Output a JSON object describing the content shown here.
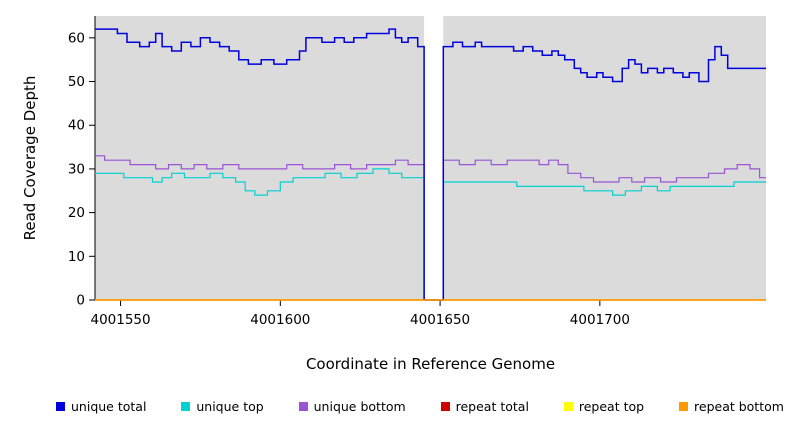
{
  "legend": [
    {
      "label": "unique total",
      "color": "#0000DD"
    },
    {
      "label": "unique top",
      "color": "#00D1D1"
    },
    {
      "label": "unique bottom",
      "color": "#9955D5"
    },
    {
      "label": "repeat total",
      "color": "#CC0000"
    },
    {
      "label": "repeat top",
      "color": "#FFFF00"
    },
    {
      "label": "repeat bottom",
      "color": "#FF9900"
    }
  ],
  "chart_data": {
    "type": "line",
    "step": true,
    "title": "",
    "xlabel": "Coordinate in Reference Genome",
    "ylabel": "Read Coverage Depth",
    "xlim": [
      4001542,
      4001752
    ],
    "ylim": [
      0,
      65
    ],
    "x_ticks": [
      4001550,
      4001600,
      4001650,
      4001700
    ],
    "y_ticks": [
      0,
      10,
      20,
      30,
      40,
      50,
      60
    ],
    "panel_color": "#DBDBDB",
    "gap_region": [
      4001645,
      4001651
    ],
    "grid": false,
    "legend_position": "bottom",
    "series": [
      {
        "name": "unique bottom",
        "color": "#9955D5",
        "width": 1.2,
        "points": [
          [
            4001542,
            33
          ],
          [
            4001545,
            32
          ],
          [
            4001549,
            32
          ],
          [
            4001553,
            31
          ],
          [
            4001557,
            31
          ],
          [
            4001561,
            30
          ],
          [
            4001565,
            31
          ],
          [
            4001569,
            30
          ],
          [
            4001573,
            31
          ],
          [
            4001577,
            30
          ],
          [
            4001582,
            31
          ],
          [
            4001587,
            30
          ],
          [
            4001592,
            30
          ],
          [
            4001597,
            30
          ],
          [
            4001602,
            31
          ],
          [
            4001607,
            30
          ],
          [
            4001612,
            30
          ],
          [
            4001617,
            31
          ],
          [
            4001622,
            30
          ],
          [
            4001627,
            31
          ],
          [
            4001632,
            31
          ],
          [
            4001636,
            32
          ],
          [
            4001640,
            31
          ],
          [
            4001643,
            31
          ],
          [
            4001645,
            0
          ],
          [
            4001650,
            0
          ],
          [
            4001651,
            32
          ],
          [
            4001656,
            31
          ],
          [
            4001661,
            32
          ],
          [
            4001666,
            31
          ],
          [
            4001671,
            32
          ],
          [
            4001676,
            32
          ],
          [
            4001681,
            31
          ],
          [
            4001684,
            32
          ],
          [
            4001687,
            31
          ],
          [
            4001690,
            29
          ],
          [
            4001694,
            28
          ],
          [
            4001698,
            27
          ],
          [
            4001702,
            27
          ],
          [
            4001706,
            28
          ],
          [
            4001710,
            27
          ],
          [
            4001714,
            28
          ],
          [
            4001719,
            27
          ],
          [
            4001724,
            28
          ],
          [
            4001729,
            28
          ],
          [
            4001734,
            29
          ],
          [
            4001739,
            30
          ],
          [
            4001743,
            31
          ],
          [
            4001747,
            30
          ],
          [
            4001750,
            28
          ],
          [
            4001752,
            28
          ]
        ]
      },
      {
        "name": "unique top",
        "color": "#00D1D1",
        "width": 1.2,
        "points": [
          [
            4001542,
            29
          ],
          [
            4001548,
            29
          ],
          [
            4001551,
            28
          ],
          [
            4001556,
            28
          ],
          [
            4001560,
            27
          ],
          [
            4001563,
            28
          ],
          [
            4001566,
            29
          ],
          [
            4001570,
            28
          ],
          [
            4001574,
            28
          ],
          [
            4001578,
            29
          ],
          [
            4001582,
            28
          ],
          [
            4001586,
            27
          ],
          [
            4001589,
            25
          ],
          [
            4001592,
            24
          ],
          [
            4001596,
            25
          ],
          [
            4001600,
            27
          ],
          [
            4001604,
            28
          ],
          [
            4001609,
            28
          ],
          [
            4001614,
            29
          ],
          [
            4001619,
            28
          ],
          [
            4001624,
            29
          ],
          [
            4001629,
            30
          ],
          [
            4001634,
            29
          ],
          [
            4001638,
            28
          ],
          [
            4001643,
            28
          ],
          [
            4001645,
            0
          ],
          [
            4001650,
            0
          ],
          [
            4001651,
            27
          ],
          [
            4001656,
            27
          ],
          [
            4001662,
            27
          ],
          [
            4001668,
            27
          ],
          [
            4001674,
            26
          ],
          [
            4001680,
            26
          ],
          [
            4001686,
            26
          ],
          [
            4001691,
            26
          ],
          [
            4001695,
            25
          ],
          [
            4001700,
            25
          ],
          [
            4001704,
            24
          ],
          [
            4001708,
            25
          ],
          [
            4001713,
            26
          ],
          [
            4001718,
            25
          ],
          [
            4001722,
            26
          ],
          [
            4001727,
            26
          ],
          [
            4001732,
            26
          ],
          [
            4001737,
            26
          ],
          [
            4001742,
            27
          ],
          [
            4001747,
            27
          ],
          [
            4001752,
            27
          ]
        ]
      },
      {
        "name": "unique total",
        "color": "#0000DD",
        "width": 1.5,
        "points": [
          [
            4001542,
            62
          ],
          [
            4001549,
            61
          ],
          [
            4001552,
            59
          ],
          [
            4001556,
            58
          ],
          [
            4001559,
            59
          ],
          [
            4001561,
            61
          ],
          [
            4001563,
            58
          ],
          [
            4001566,
            57
          ],
          [
            4001569,
            59
          ],
          [
            4001572,
            58
          ],
          [
            4001575,
            60
          ],
          [
            4001578,
            59
          ],
          [
            4001581,
            58
          ],
          [
            4001584,
            57
          ],
          [
            4001587,
            55
          ],
          [
            4001590,
            54
          ],
          [
            4001594,
            55
          ],
          [
            4001598,
            54
          ],
          [
            4001602,
            55
          ],
          [
            4001606,
            57
          ],
          [
            4001608,
            60
          ],
          [
            4001613,
            59
          ],
          [
            4001617,
            60
          ],
          [
            4001620,
            59
          ],
          [
            4001623,
            60
          ],
          [
            4001627,
            61
          ],
          [
            4001631,
            61
          ],
          [
            4001634,
            62
          ],
          [
            4001636,
            60
          ],
          [
            4001638,
            59
          ],
          [
            4001640,
            60
          ],
          [
            4001643,
            58
          ],
          [
            4001645,
            0
          ],
          [
            4001650,
            0
          ],
          [
            4001651,
            58
          ],
          [
            4001654,
            59
          ],
          [
            4001657,
            58
          ],
          [
            4001661,
            59
          ],
          [
            4001663,
            58
          ],
          [
            4001669,
            58
          ],
          [
            4001673,
            57
          ],
          [
            4001676,
            58
          ],
          [
            4001679,
            57
          ],
          [
            4001682,
            56
          ],
          [
            4001685,
            57
          ],
          [
            4001687,
            56
          ],
          [
            4001689,
            55
          ],
          [
            4001692,
            53
          ],
          [
            4001694,
            52
          ],
          [
            4001696,
            51
          ],
          [
            4001699,
            52
          ],
          [
            4001701,
            51
          ],
          [
            4001704,
            50
          ],
          [
            4001707,
            53
          ],
          [
            4001709,
            55
          ],
          [
            4001711,
            54
          ],
          [
            4001713,
            52
          ],
          [
            4001715,
            53
          ],
          [
            4001718,
            52
          ],
          [
            4001720,
            53
          ],
          [
            4001723,
            52
          ],
          [
            4001726,
            51
          ],
          [
            4001728,
            52
          ],
          [
            4001731,
            50
          ],
          [
            4001734,
            55
          ],
          [
            4001736,
            58
          ],
          [
            4001738,
            56
          ],
          [
            4001740,
            53
          ],
          [
            4001743,
            53
          ],
          [
            4001752,
            53
          ]
        ]
      },
      {
        "name": "repeat total",
        "color": "#CC0000",
        "width": 1.2,
        "points": [
          [
            4001542,
            0
          ],
          [
            4001752,
            0
          ]
        ]
      },
      {
        "name": "repeat top",
        "color": "#FFFF00",
        "width": 1.2,
        "points": [
          [
            4001542,
            0
          ],
          [
            4001752,
            0
          ]
        ]
      },
      {
        "name": "repeat bottom",
        "color": "#FF9900",
        "width": 1.5,
        "points": [
          [
            4001542,
            0
          ],
          [
            4001752,
            0
          ]
        ]
      }
    ]
  }
}
